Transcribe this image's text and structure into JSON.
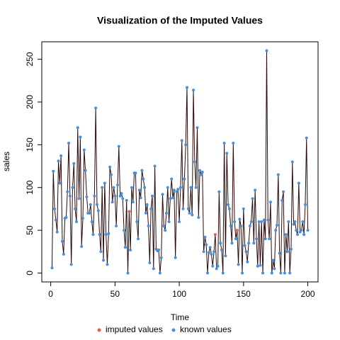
{
  "chart_data": {
    "type": "line",
    "title": "Visualization of the Imputed Values",
    "x_label": "Time",
    "y_label": "sales",
    "x": [
      1,
      2,
      3,
      4,
      5,
      6,
      7,
      8,
      9,
      10,
      11,
      12,
      13,
      14,
      15,
      16,
      17,
      18,
      19,
      20,
      21,
      22,
      23,
      24,
      25,
      26,
      27,
      28,
      29,
      30,
      31,
      32,
      33,
      34,
      35,
      36,
      37,
      38,
      39,
      40,
      41,
      42,
      43,
      44,
      45,
      46,
      47,
      48,
      49,
      50,
      51,
      52,
      53,
      54,
      55,
      56,
      57,
      58,
      59,
      60,
      61,
      62,
      63,
      64,
      65,
      66,
      67,
      68,
      69,
      70,
      71,
      72,
      73,
      74,
      75,
      76,
      77,
      78,
      79,
      80,
      81,
      82,
      83,
      84,
      85,
      86,
      87,
      88,
      89,
      90,
      91,
      92,
      93,
      94,
      95,
      96,
      97,
      98,
      99,
      100,
      101,
      102,
      103,
      104,
      105,
      106,
      107,
      108,
      109,
      110,
      111,
      112,
      113,
      114,
      115,
      116,
      117,
      118,
      119,
      120,
      121,
      122,
      123,
      124,
      125,
      126,
      127,
      128,
      129,
      130,
      131,
      132,
      133,
      134,
      135,
      136,
      137,
      138,
      139,
      140,
      141,
      142,
      143,
      144,
      145,
      146,
      147,
      148,
      149,
      150,
      151,
      152,
      153,
      154,
      155,
      156,
      157,
      158,
      159,
      160,
      161,
      162,
      163,
      164,
      165,
      166,
      167,
      168,
      169,
      170,
      171,
      172,
      173,
      174,
      175,
      176,
      177,
      178,
      179,
      180,
      181,
      182,
      183,
      184,
      185,
      186,
      187,
      188,
      189,
      190,
      191,
      192,
      193,
      194,
      195,
      196,
      197,
      198,
      199,
      200
    ],
    "series": [
      {
        "name": "imputed values",
        "color": "#ee5c4d",
        "x": [
          61,
          128,
          145
        ],
        "values": [
          72,
          45,
          50
        ]
      },
      {
        "name": "known values",
        "color": "#4a8fd6",
        "values": [
          6,
          119,
          75,
          62,
          48,
          131,
          105,
          137,
          37,
          22,
          64,
          65,
          95,
          152,
          90,
          10,
          100,
          128,
          75,
          60,
          170,
          87,
          159,
          31,
          64,
          144,
          120,
          89,
          70,
          70,
          80,
          60,
          45,
          90,
          193,
          80,
          73,
          45,
          25,
          100,
          15,
          105,
          45,
          10,
          46,
          124,
          115,
          83,
          100,
          90,
          55,
          103,
          148,
          90,
          93,
          87,
          50,
          30,
          85,
          0,
          null,
          27,
          100,
          83,
          117,
          117,
          60,
          40,
          97,
          88,
          120,
          110,
          100,
          70,
          80,
          55,
          12,
          75,
          90,
          5,
          125,
          28,
          26,
          27,
          0,
          18,
          92,
          55,
          50,
          70,
          100,
          60,
          87,
          110,
          88,
          97,
          18,
          95,
          98,
          60,
          100,
          155,
          75,
          110,
          150,
          217,
          75,
          70,
          100,
          68,
          214,
          130,
          100,
          170,
          65,
          120,
          115,
          118,
          25,
          42,
          33,
          0,
          24,
          30,
          22,
          8,
          25,
          null,
          5,
          8,
          95,
          35,
          27,
          0,
          152,
          20,
          140,
          80,
          75,
          55,
          35,
          152,
          60,
          40,
          null,
          10,
          63,
          55,
          0,
          75,
          32,
          25,
          13,
          35,
          55,
          60,
          87,
          35,
          97,
          40,
          8,
          60,
          9,
          60,
          0,
          62,
          40,
          260,
          62,
          40,
          83,
          0,
          15,
          5,
          50,
          56,
          115,
          23,
          0,
          85,
          95,
          0,
          45,
          25,
          60,
          0,
          28,
          130,
          57,
          60,
          50,
          45,
          105,
          48,
          50,
          60,
          45,
          80,
          158,
          50
        ]
      }
    ],
    "line_color": "#2a0a0a",
    "xlim": [
      -6.96,
      207.96
    ],
    "xticks": [
      0,
      50,
      100,
      150,
      200
    ],
    "ylim": [
      -10.4,
      270.4
    ],
    "yticks": [
      0,
      50,
      100,
      150,
      200,
      250
    ],
    "legend": "bottom"
  }
}
